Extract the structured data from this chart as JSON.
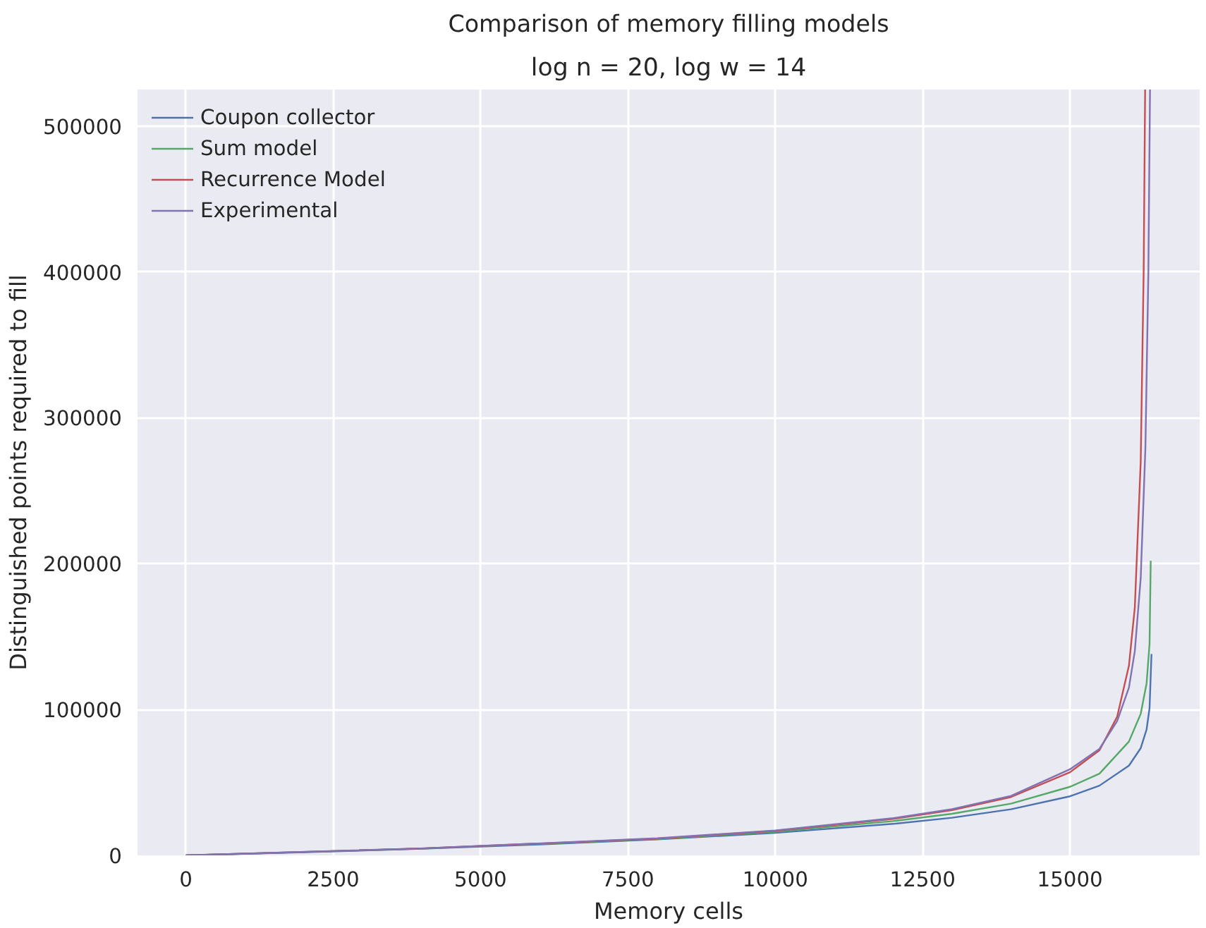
{
  "chart_data": {
    "type": "line",
    "title": "Comparison of memory filling models",
    "subtitle": "log n = 20, log w = 14",
    "xlabel": "Memory cells",
    "ylabel": "Distinguished points required to fill",
    "xlim": [
      -820,
      17200
    ],
    "ylim": [
      0,
      525000
    ],
    "xticks": [
      0,
      2500,
      5000,
      7500,
      10000,
      12500,
      15000
    ],
    "yticks": [
      0,
      100000,
      200000,
      300000,
      400000,
      500000
    ],
    "grid": true,
    "legend": "top left",
    "line_style": "solid",
    "marker": "none",
    "series": [
      {
        "name": "Coupon collector",
        "color": "#4c72b0",
        "x": [
          0,
          2000,
          4000,
          6000,
          8000,
          10000,
          12000,
          13000,
          14000,
          15000,
          15500,
          16000,
          16200,
          16300,
          16350,
          16383
        ],
        "values": [
          0,
          2100,
          4600,
          7500,
          11000,
          15400,
          21600,
          25800,
          31600,
          40500,
          47800,
          61500,
          73500,
          86400,
          101000,
          138000
        ]
      },
      {
        "name": "Sum model",
        "color": "#55a868",
        "x": [
          0,
          4000,
          8000,
          10000,
          12000,
          13000,
          14000,
          15000,
          15500,
          16000,
          16200,
          16300,
          16350,
          16370
        ],
        "values": [
          0,
          4650,
          11200,
          16200,
          23500,
          28500,
          35500,
          47000,
          56000,
          78000,
          97000,
          118000,
          145000,
          202000
        ]
      },
      {
        "name": "Recurrence Model",
        "color": "#c44e52",
        "x": [
          0,
          4000,
          8000,
          10000,
          12000,
          13000,
          14000,
          15000,
          15500,
          15800,
          16000,
          16100,
          16200,
          16250,
          16275
        ],
        "values": [
          0,
          4700,
          11500,
          16800,
          25000,
          31000,
          40000,
          57000,
          72000,
          95000,
          130000,
          170000,
          270000,
          400000,
          525000
        ]
      },
      {
        "name": "Experimental",
        "color": "#8172b2",
        "x": [
          0,
          4000,
          8000,
          10000,
          12000,
          13000,
          14000,
          15000,
          15500,
          15800,
          16000,
          16100,
          16200,
          16280,
          16330,
          16358
        ],
        "values": [
          0,
          4750,
          11700,
          17100,
          25500,
          31700,
          40800,
          59000,
          73000,
          92000,
          115000,
          140000,
          190000,
          280000,
          400000,
          525000
        ]
      }
    ]
  }
}
